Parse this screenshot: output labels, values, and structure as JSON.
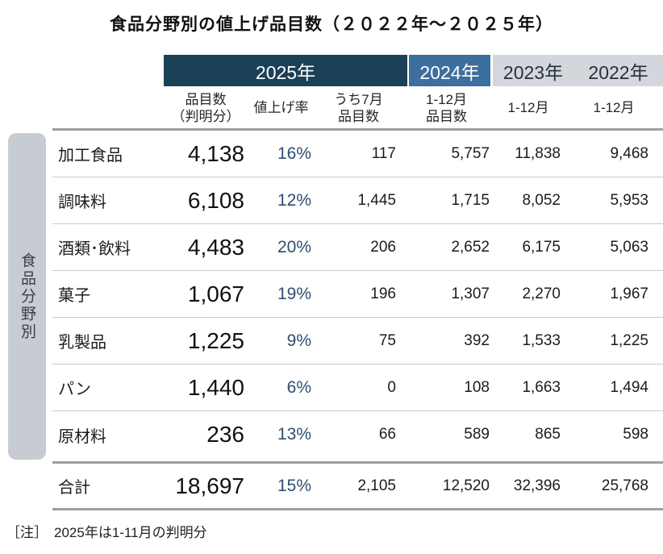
{
  "title": "食品分野別の値上げ品目数（２０２２年～２０２５年）",
  "colors": {
    "header_2025_bg": "#1c4157",
    "header_2024_bg": "#3c6e9e",
    "header_past_bg": "#d3d7db",
    "sidebar_bg": "#c7ccd2",
    "rate_text": "#2e4e70"
  },
  "header": {
    "year_2025": "2025年",
    "year_2024": "2024年",
    "year_2023": "2023年",
    "year_2022": "2022年",
    "sub": {
      "c1_line1": "品目数",
      "c1_line2": "（判明分）",
      "c2": "値上げ率",
      "c3_line1": "うち7月",
      "c3_line2": "品目数",
      "c4_line1": "1-12月",
      "c4_line2": "品目数",
      "c5": "1-12月",
      "c6": "1-12月"
    }
  },
  "sidebar_label": "食品分野別",
  "rows": [
    {
      "label": "加工食品",
      "count": "4,138",
      "rate": "16%",
      "july": "117",
      "y2024": "5,757",
      "y2023": "11,838",
      "y2022": "9,468"
    },
    {
      "label": "調味料",
      "count": "6,108",
      "rate": "12%",
      "july": "1,445",
      "y2024": "1,715",
      "y2023": "8,052",
      "y2022": "5,953"
    },
    {
      "label": "酒類･飲料",
      "count": "4,483",
      "rate": "20%",
      "july": "206",
      "y2024": "2,652",
      "y2023": "6,175",
      "y2022": "5,063"
    },
    {
      "label": "菓子",
      "count": "1,067",
      "rate": "19%",
      "july": "196",
      "y2024": "1,307",
      "y2023": "2,270",
      "y2022": "1,967"
    },
    {
      "label": "乳製品",
      "count": "1,225",
      "rate": "9%",
      "july": "75",
      "y2024": "392",
      "y2023": "1,533",
      "y2022": "1,225"
    },
    {
      "label": "パン",
      "count": "1,440",
      "rate": "6%",
      "july": "0",
      "y2024": "108",
      "y2023": "1,663",
      "y2022": "1,494"
    },
    {
      "label": "原材料",
      "count": "236",
      "rate": "13%",
      "july": "66",
      "y2024": "589",
      "y2023": "865",
      "y2022": "598"
    }
  ],
  "total": {
    "label": "合計",
    "count": "18,697",
    "rate": "15%",
    "july": "2,105",
    "y2024": "12,520",
    "y2023": "32,396",
    "y2022": "25,768"
  },
  "note": {
    "label": "［注］",
    "text": "2025年は1-11月の判明分"
  },
  "chart_data": {
    "type": "table",
    "title": "食品分野別の値上げ品目数（２０２２年～２０２５年）",
    "row_axis_label": "食品分野別",
    "columns": [
      "2025年 品目数（判明分）",
      "2025年 値上げ率",
      "2025年 うち7月品目数",
      "2024年 1-12月品目数",
      "2023年 1-12月",
      "2022年 1-12月"
    ],
    "categories": [
      "加工食品",
      "調味料",
      "酒類･飲料",
      "菓子",
      "乳製品",
      "パン",
      "原材料",
      "合計"
    ],
    "values": [
      [
        4138,
        "16%",
        117,
        5757,
        11838,
        9468
      ],
      [
        6108,
        "12%",
        1445,
        1715,
        8052,
        5953
      ],
      [
        4483,
        "20%",
        206,
        2652,
        6175,
        5063
      ],
      [
        1067,
        "19%",
        196,
        1307,
        2270,
        1967
      ],
      [
        1225,
        "9%",
        75,
        392,
        1533,
        1225
      ],
      [
        1440,
        "6%",
        0,
        108,
        1663,
        1494
      ],
      [
        236,
        "13%",
        66,
        589,
        865,
        598
      ],
      [
        18697,
        "15%",
        2105,
        12520,
        32396,
        25768
      ]
    ],
    "note": "2025年は1-11月の判明分"
  }
}
